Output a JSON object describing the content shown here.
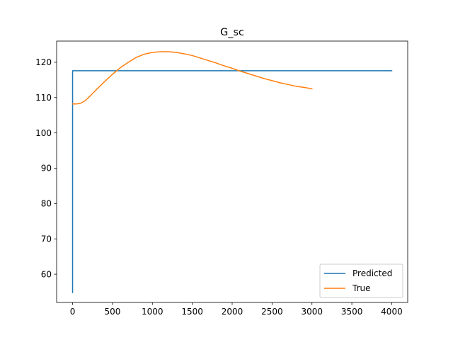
{
  "chart_data": {
    "type": "line",
    "title": "G_sc",
    "xlabel": "",
    "ylabel": "",
    "xlim": [
      -200,
      4200
    ],
    "ylim": [
      52,
      126
    ],
    "xticks": [
      0,
      500,
      1000,
      1500,
      2000,
      2500,
      3000,
      3500,
      4000
    ],
    "yticks": [
      60,
      70,
      80,
      90,
      100,
      110,
      120
    ],
    "grid": false,
    "legend_position": "lower right",
    "series": [
      {
        "name": "Predicted",
        "color": "#1f77b4",
        "x": [
          0,
          0,
          4000
        ],
        "y": [
          54.8,
          117.6,
          117.6
        ]
      },
      {
        "name": "True",
        "color": "#ff7f0e",
        "x": [
          0,
          50,
          100,
          150,
          200,
          300,
          400,
          500,
          600,
          700,
          800,
          900,
          1000,
          1100,
          1200,
          1300,
          1400,
          1500,
          1600,
          1700,
          1800,
          1900,
          2000,
          2100,
          2200,
          2300,
          2400,
          2500,
          2600,
          2700,
          2800,
          2900,
          3000
        ],
        "y": [
          108.2,
          108.2,
          108.4,
          109.0,
          110.0,
          112.3,
          114.5,
          116.6,
          118.5,
          120.0,
          121.4,
          122.3,
          122.8,
          123.0,
          123.0,
          122.8,
          122.4,
          121.9,
          121.2,
          120.5,
          119.8,
          119.0,
          118.3,
          117.5,
          116.8,
          116.1,
          115.4,
          114.8,
          114.2,
          113.7,
          113.2,
          112.9,
          112.5
        ]
      }
    ]
  }
}
